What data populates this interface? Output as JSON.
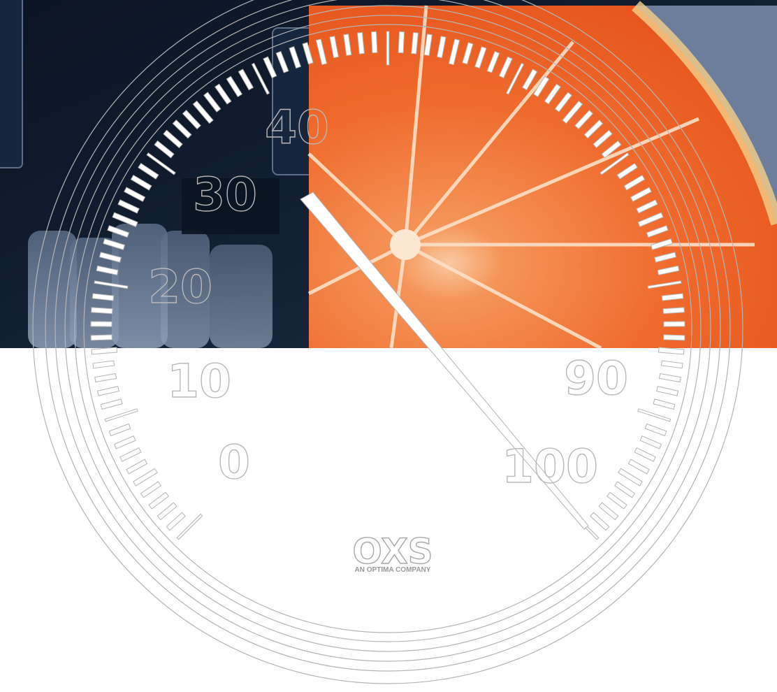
{
  "gauge": {
    "scale_labels": [
      "0",
      "10",
      "20",
      "30",
      "40",
      "90",
      "100"
    ],
    "scale_min": 0,
    "scale_max": 100
  },
  "logo": {
    "name": "OXS",
    "tagline": "AN OPTIMA COMPANY"
  },
  "colors": {
    "dark_panel": "#0e1a2a",
    "slate_panel": "#6b7f9c",
    "orange": "#f06a2a",
    "line_gray": "#b5b5b5"
  }
}
